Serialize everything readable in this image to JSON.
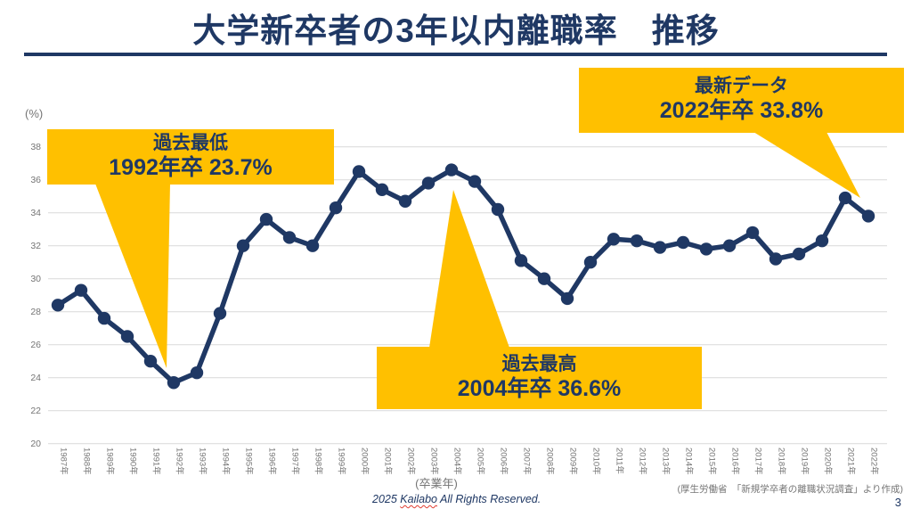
{
  "page": {
    "title": "大学新卒者の3年以内離職率　推移",
    "page_number": "3",
    "source_note": "(厚生労働省　「新規学卒者の離職状況調査」より作成)",
    "copyright": {
      "year": "2025 ",
      "brand": "Kailabo",
      "suffix": " All Rights Reserved."
    }
  },
  "chart_data": {
    "type": "line",
    "title": "大学新卒者の3年以内離職率　推移",
    "xlabel": "(卒業年)",
    "ylabel": "(%)",
    "ylim": [
      20,
      38
    ],
    "ytick_step": 2,
    "grid": true,
    "legend": "none",
    "categories": [
      "1987年",
      "1988年",
      "1989年",
      "1990年",
      "1991年",
      "1992年",
      "1993年",
      "1994年",
      "1995年",
      "1996年",
      "1997年",
      "1998年",
      "1999年",
      "2000年",
      "2001年",
      "2002年",
      "2003年",
      "2004年",
      "2005年",
      "2006年",
      "2007年",
      "2008年",
      "2009年",
      "2010年",
      "2011年",
      "2012年",
      "2013年",
      "2014年",
      "2015年",
      "2016年",
      "2017年",
      "2018年",
      "2019年",
      "2020年",
      "2021年",
      "2022年"
    ],
    "series": [
      {
        "name": "大学新卒者の3年以内離職率",
        "values": [
          28.4,
          29.3,
          27.6,
          26.5,
          25.0,
          23.7,
          24.3,
          27.9,
          32.0,
          33.6,
          32.5,
          32.0,
          34.3,
          36.5,
          35.4,
          34.7,
          35.8,
          36.6,
          35.9,
          34.2,
          31.1,
          30.0,
          28.8,
          31.0,
          32.4,
          32.3,
          31.9,
          32.2,
          31.8,
          32.0,
          32.8,
          31.2,
          31.5,
          32.3,
          34.9,
          33.8
        ]
      }
    ],
    "annotations": [
      {
        "label": "過去最低",
        "detail": "1992年卒 23.7%",
        "target_year": "1992年",
        "target_value": 23.7
      },
      {
        "label": "過去最高",
        "detail": "2004年卒 36.6%",
        "target_year": "2004年",
        "target_value": 36.6
      },
      {
        "label": "最新データ",
        "detail": "2022年卒 33.8%",
        "target_year": "2022年",
        "target_value": 33.8
      }
    ],
    "colors": {
      "line": "#1f3864",
      "annotation_bg": "#ffc000",
      "annotation_text": "#1f3864",
      "grid": "#d9d9d9",
      "axis_text": "#757575",
      "title_text": "#1f3864"
    }
  }
}
